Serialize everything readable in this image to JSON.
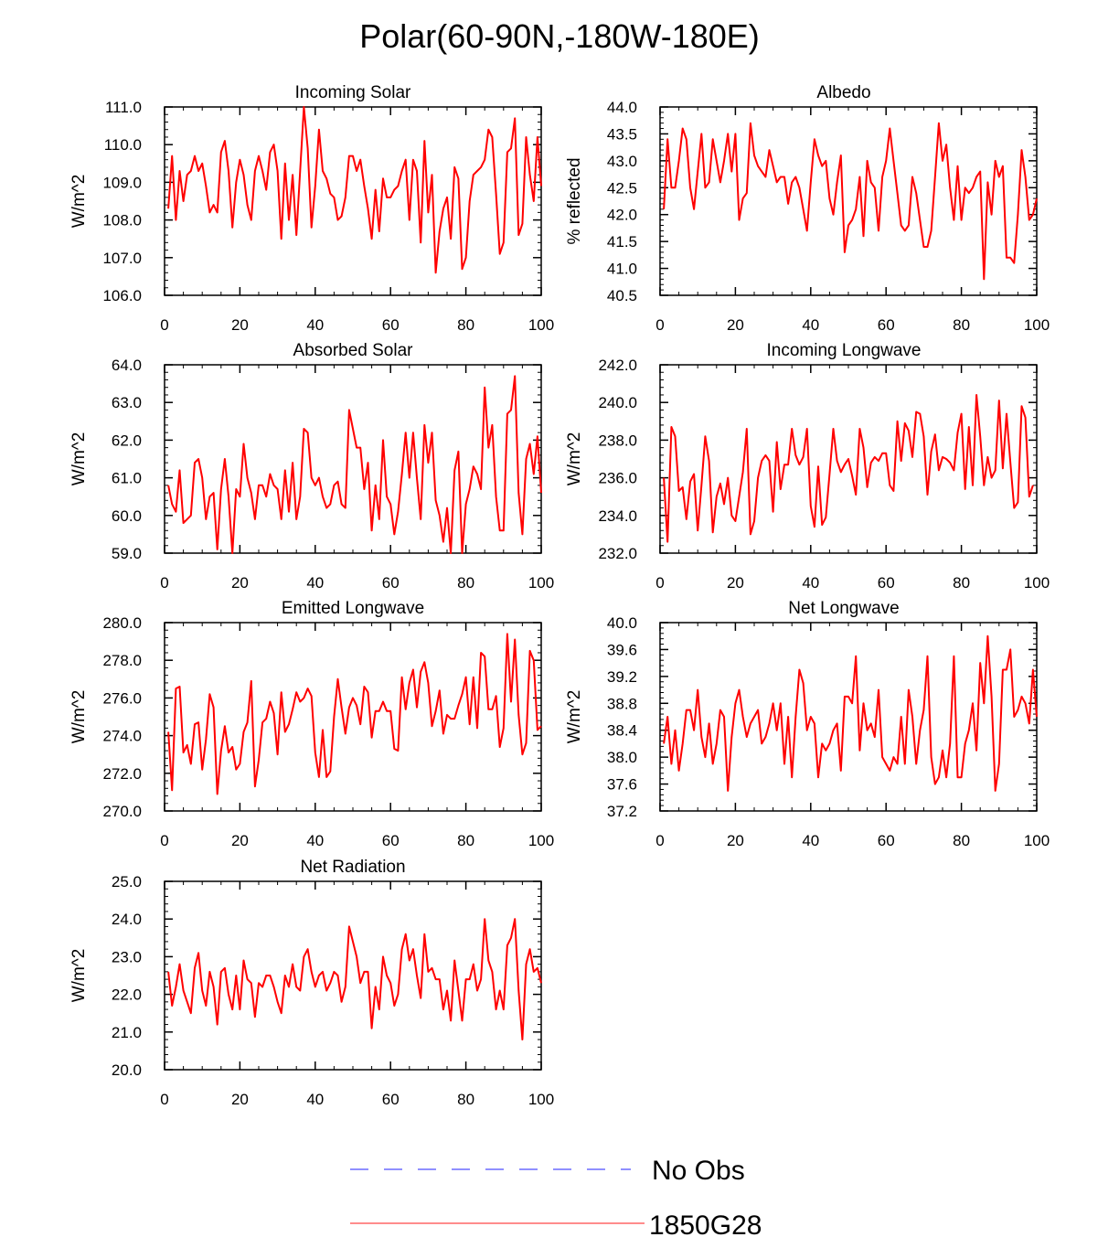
{
  "figure": {
    "title": "Polar(60-90N,-180W-180E)"
  },
  "legend": [
    {
      "label": "No Obs",
      "color": "#6b6bff",
      "style": "dashed"
    },
    {
      "label": "1850G28",
      "color": "#ff0000",
      "style": "solid"
    }
  ],
  "chart_data": [
    {
      "type": "line",
      "title": "Incoming Solar",
      "xlabel": "",
      "ylabel": "W/m^2",
      "xlim": [
        0,
        100
      ],
      "ylim": [
        106.0,
        111.0
      ],
      "xticks": [
        0,
        20,
        40,
        60,
        80,
        100
      ],
      "yticks": [
        106.0,
        107.0,
        108.0,
        109.0,
        110.0,
        111.0
      ],
      "ydec": 1,
      "series": [
        {
          "name": "1850G28",
          "x_start": 1,
          "values": [
            108.3,
            109.7,
            108.0,
            109.3,
            108.5,
            109.2,
            109.3,
            109.7,
            109.3,
            109.5,
            108.9,
            108.2,
            108.4,
            108.2,
            109.8,
            110.1,
            109.3,
            107.8,
            109.0,
            109.6,
            109.2,
            108.4,
            108.0,
            109.3,
            109.7,
            109.3,
            108.8,
            109.8,
            110.0,
            109.3,
            107.5,
            109.5,
            108.0,
            109.2,
            107.6,
            109.3,
            111.0,
            109.9,
            107.8,
            108.9,
            110.4,
            109.3,
            109.1,
            108.7,
            108.6,
            108.0,
            108.1,
            108.6,
            109.7,
            109.7,
            109.3,
            109.6,
            108.9,
            108.3,
            107.5,
            108.8,
            107.7,
            109.1,
            108.6,
            108.6,
            108.8,
            108.9,
            109.3,
            109.6,
            108.0,
            109.6,
            109.3,
            107.4,
            110.1,
            108.2,
            109.2,
            106.6,
            107.7,
            108.3,
            108.6,
            107.5,
            109.4,
            109.1,
            106.7,
            107.0,
            108.5,
            109.2,
            109.3,
            109.4,
            109.6,
            110.4,
            110.2,
            108.7,
            107.1,
            107.4,
            109.8,
            109.9,
            110.7,
            107.6,
            107.9,
            110.2,
            109.2,
            108.5,
            110.2,
            108.9
          ]
        }
      ]
    },
    {
      "type": "line",
      "title": "Albedo",
      "xlabel": "",
      "ylabel": "% reflected",
      "xlim": [
        0,
        100
      ],
      "ylim": [
        40.5,
        44.0
      ],
      "xticks": [
        0,
        20,
        40,
        60,
        80,
        100
      ],
      "yticks": [
        40.5,
        41.0,
        41.5,
        42.0,
        42.5,
        43.0,
        43.5,
        44.0
      ],
      "ydec": 1,
      "series": [
        {
          "name": "1850G28",
          "x_start": 1,
          "values": [
            42.1,
            43.4,
            42.5,
            42.5,
            43.0,
            43.6,
            43.4,
            42.5,
            42.1,
            42.8,
            43.5,
            42.5,
            42.6,
            43.4,
            43.0,
            42.6,
            43.0,
            43.5,
            42.8,
            43.5,
            41.9,
            42.3,
            42.4,
            43.7,
            43.1,
            42.9,
            42.8,
            42.7,
            43.2,
            42.9,
            42.6,
            42.7,
            42.7,
            42.2,
            42.6,
            42.7,
            42.5,
            42.1,
            41.7,
            42.6,
            43.4,
            43.1,
            42.9,
            43.0,
            42.3,
            42.0,
            42.6,
            43.1,
            41.3,
            41.8,
            41.9,
            42.1,
            42.7,
            41.6,
            43.0,
            42.6,
            42.5,
            41.7,
            42.7,
            43.0,
            43.6,
            43.0,
            42.4,
            41.8,
            41.7,
            41.8,
            42.7,
            42.4,
            41.9,
            41.4,
            41.4,
            41.7,
            42.7,
            43.7,
            43.0,
            43.3,
            42.5,
            41.9,
            42.9,
            41.9,
            42.5,
            42.4,
            42.5,
            42.7,
            42.8,
            40.8,
            42.6,
            42.0,
            43.0,
            42.7,
            42.9,
            41.2,
            41.2,
            41.1,
            42.0,
            43.2,
            42.7,
            41.9,
            42.0,
            42.3
          ]
        }
      ]
    },
    {
      "type": "line",
      "title": "Absorbed Solar",
      "xlabel": "",
      "ylabel": "W/m^2",
      "xlim": [
        0,
        100
      ],
      "ylim": [
        59.0,
        64.0
      ],
      "xticks": [
        0,
        20,
        40,
        60,
        80,
        100
      ],
      "yticks": [
        59.0,
        60.0,
        61.0,
        62.0,
        63.0,
        64.0
      ],
      "ydec": 1,
      "series": [
        {
          "name": "1850G28",
          "x_start": 1,
          "values": [
            60.8,
            60.3,
            60.1,
            61.2,
            59.8,
            59.9,
            60.0,
            61.4,
            61.5,
            61.0,
            59.9,
            60.5,
            60.6,
            59.1,
            60.7,
            61.5,
            60.5,
            59.0,
            60.7,
            60.5,
            61.9,
            61.0,
            60.6,
            59.9,
            60.8,
            60.8,
            60.5,
            61.1,
            60.8,
            60.7,
            59.9,
            61.2,
            60.1,
            61.4,
            59.9,
            60.5,
            62.3,
            62.2,
            61.0,
            60.8,
            61.0,
            60.5,
            60.2,
            60.3,
            60.8,
            60.9,
            60.3,
            60.2,
            62.8,
            62.3,
            61.8,
            61.8,
            60.7,
            61.4,
            59.6,
            60.8,
            59.9,
            62.0,
            60.5,
            60.3,
            59.5,
            60.1,
            61.1,
            62.2,
            61.0,
            62.2,
            61.0,
            59.9,
            62.4,
            61.4,
            62.2,
            60.4,
            60.0,
            59.3,
            60.2,
            59.0,
            61.2,
            61.7,
            59.0,
            60.3,
            60.7,
            61.3,
            61.1,
            60.7,
            63.4,
            61.8,
            62.4,
            60.5,
            59.6,
            59.6,
            62.7,
            62.8,
            63.7,
            60.6,
            59.5,
            61.5,
            61.9,
            61.1,
            62.1,
            60.6
          ]
        }
      ]
    },
    {
      "type": "line",
      "title": "Incoming Longwave",
      "xlabel": "",
      "ylabel": "W/m^2",
      "xlim": [
        0,
        100
      ],
      "ylim": [
        232.0,
        242.0
      ],
      "xticks": [
        0,
        20,
        40,
        60,
        80,
        100
      ],
      "yticks": [
        232.0,
        234.0,
        236.0,
        238.0,
        240.0,
        242.0
      ],
      "ydec": 1,
      "series": [
        {
          "name": "1850G28",
          "x_start": 1,
          "values": [
            236.0,
            232.6,
            238.7,
            238.2,
            235.3,
            235.5,
            233.8,
            235.8,
            236.2,
            233.2,
            235.6,
            238.2,
            236.9,
            233.1,
            235.0,
            235.7,
            234.6,
            236.0,
            234.0,
            233.7,
            235.0,
            236.3,
            238.6,
            233.0,
            233.7,
            236.0,
            236.9,
            237.2,
            236.9,
            234.2,
            237.9,
            235.4,
            236.7,
            236.7,
            238.6,
            237.2,
            236.7,
            237.1,
            238.6,
            234.5,
            233.4,
            236.6,
            233.5,
            233.9,
            236.2,
            238.6,
            236.9,
            236.3,
            236.7,
            237.0,
            236.1,
            235.1,
            238.6,
            237.6,
            235.5,
            236.8,
            237.1,
            236.9,
            237.3,
            237.3,
            235.6,
            235.3,
            239.0,
            236.9,
            238.9,
            238.5,
            237.1,
            239.5,
            239.4,
            238.2,
            235.1,
            237.4,
            238.3,
            236.4,
            237.1,
            237.0,
            236.8,
            236.4,
            238.4,
            239.4,
            235.4,
            238.7,
            235.6,
            240.4,
            238.2,
            235.6,
            237.1,
            236.0,
            236.4,
            240.1,
            236.5,
            239.4,
            236.8,
            234.4,
            234.7,
            239.8,
            239.2,
            235.0,
            235.6
          ]
        }
      ]
    },
    {
      "type": "line",
      "title": "Emitted Longwave",
      "xlabel": "",
      "ylabel": "W/m^2",
      "xlim": [
        0,
        100
      ],
      "ylim": [
        270.0,
        280.0
      ],
      "xticks": [
        0,
        20,
        40,
        60,
        80,
        100
      ],
      "yticks": [
        270.0,
        272.0,
        274.0,
        276.0,
        278.0,
        280.0
      ],
      "ydec": 1,
      "series": [
        {
          "name": "1850G28",
          "x_start": 1,
          "values": [
            274.2,
            271.1,
            276.5,
            276.6,
            273.1,
            273.5,
            272.5,
            274.6,
            274.7,
            272.2,
            273.8,
            276.2,
            275.5,
            270.9,
            273.2,
            274.5,
            273.1,
            273.4,
            272.2,
            272.5,
            274.2,
            274.7,
            276.9,
            271.3,
            272.7,
            274.7,
            274.9,
            275.8,
            275.2,
            273.0,
            276.3,
            274.2,
            274.6,
            275.4,
            276.3,
            275.8,
            276.0,
            276.5,
            276.1,
            273.1,
            271.8,
            274.3,
            271.8,
            272.1,
            275.0,
            277.0,
            275.5,
            274.1,
            275.5,
            276.0,
            275.6,
            274.6,
            276.6,
            276.3,
            273.9,
            275.3,
            275.3,
            275.8,
            275.3,
            275.3,
            273.3,
            273.2,
            277.1,
            275.4,
            276.8,
            277.5,
            275.5,
            277.4,
            277.9,
            276.8,
            274.5,
            275.3,
            276.4,
            274.1,
            275.1,
            274.9,
            274.9,
            275.6,
            276.2,
            277.1,
            274.6,
            277.1,
            274.4,
            278.4,
            278.2,
            275.4,
            275.4,
            276.1,
            273.4,
            274.4,
            279.4,
            275.8,
            279.1,
            275.1,
            273.0,
            273.6,
            278.5,
            278.0,
            274.3,
            274.5
          ]
        }
      ]
    },
    {
      "type": "line",
      "title": "Net Longwave",
      "xlabel": "",
      "ylabel": "W/m^2",
      "xlim": [
        0,
        100
      ],
      "ylim": [
        37.2,
        40.0
      ],
      "xticks": [
        0,
        20,
        40,
        60,
        80,
        100
      ],
      "yticks": [
        37.2,
        37.6,
        38.0,
        38.4,
        38.8,
        39.2,
        39.6,
        40.0
      ],
      "ydec": 1,
      "series": [
        {
          "name": "1850G28",
          "x_start": 1,
          "values": [
            38.2,
            38.6,
            37.9,
            38.4,
            37.8,
            38.2,
            38.7,
            38.7,
            38.4,
            39.0,
            38.3,
            38.0,
            38.5,
            37.9,
            38.2,
            38.7,
            38.6,
            37.5,
            38.3,
            38.8,
            39.0,
            38.6,
            38.3,
            38.5,
            38.6,
            38.7,
            38.2,
            38.3,
            38.5,
            38.8,
            38.4,
            38.8,
            37.9,
            38.6,
            37.7,
            38.6,
            39.3,
            39.1,
            38.4,
            38.6,
            38.5,
            37.7,
            38.2,
            38.1,
            38.2,
            38.4,
            38.5,
            37.8,
            38.9,
            38.9,
            38.8,
            39.5,
            38.1,
            38.8,
            38.4,
            38.5,
            38.3,
            39.0,
            38.0,
            37.9,
            37.8,
            38.0,
            37.9,
            38.6,
            37.9,
            39.0,
            38.6,
            37.9,
            38.4,
            38.7,
            39.5,
            38.0,
            37.6,
            37.7,
            38.1,
            37.7,
            38.2,
            39.5,
            37.7,
            37.7,
            38.2,
            38.4,
            38.8,
            38.1,
            39.4,
            38.8,
            39.8,
            38.9,
            37.5,
            37.9,
            39.3,
            39.3,
            39.6,
            38.6,
            38.7,
            38.9,
            38.8,
            38.5,
            39.3,
            38.6
          ]
        }
      ]
    },
    {
      "type": "line",
      "title": "Net Radiation",
      "xlabel": "",
      "ylabel": "W/m^2",
      "xlim": [
        0,
        100
      ],
      "ylim": [
        20.0,
        25.0
      ],
      "xticks": [
        0,
        20,
        40,
        60,
        80,
        100
      ],
      "yticks": [
        20.0,
        21.0,
        22.0,
        23.0,
        24.0,
        25.0
      ],
      "ydec": 1,
      "series": [
        {
          "name": "1850G28",
          "x_start": 1,
          "values": [
            22.6,
            21.7,
            22.2,
            22.8,
            22.1,
            21.8,
            21.5,
            22.7,
            23.1,
            22.1,
            21.7,
            22.6,
            22.2,
            21.2,
            22.6,
            22.7,
            22.0,
            21.6,
            22.5,
            21.6,
            22.9,
            22.4,
            22.3,
            21.4,
            22.3,
            22.2,
            22.5,
            22.5,
            22.2,
            21.8,
            21.5,
            22.5,
            22.2,
            22.8,
            22.2,
            22.1,
            23.0,
            23.2,
            22.6,
            22.2,
            22.5,
            22.6,
            22.1,
            22.3,
            22.6,
            22.5,
            21.8,
            22.2,
            23.8,
            23.4,
            23.0,
            22.3,
            22.6,
            22.6,
            21.1,
            22.2,
            21.6,
            23.0,
            22.5,
            22.3,
            21.7,
            22.0,
            23.2,
            23.6,
            22.9,
            23.2,
            22.5,
            21.9,
            23.6,
            22.6,
            22.7,
            22.4,
            22.4,
            21.6,
            22.1,
            21.3,
            22.9,
            22.1,
            21.3,
            22.4,
            22.4,
            22.8,
            22.1,
            22.4,
            24.0,
            22.9,
            22.6,
            21.6,
            22.1,
            21.6,
            23.3,
            23.5,
            24.0,
            22.1,
            20.8,
            22.8,
            23.2,
            22.6,
            22.7,
            22.3
          ]
        }
      ]
    }
  ]
}
